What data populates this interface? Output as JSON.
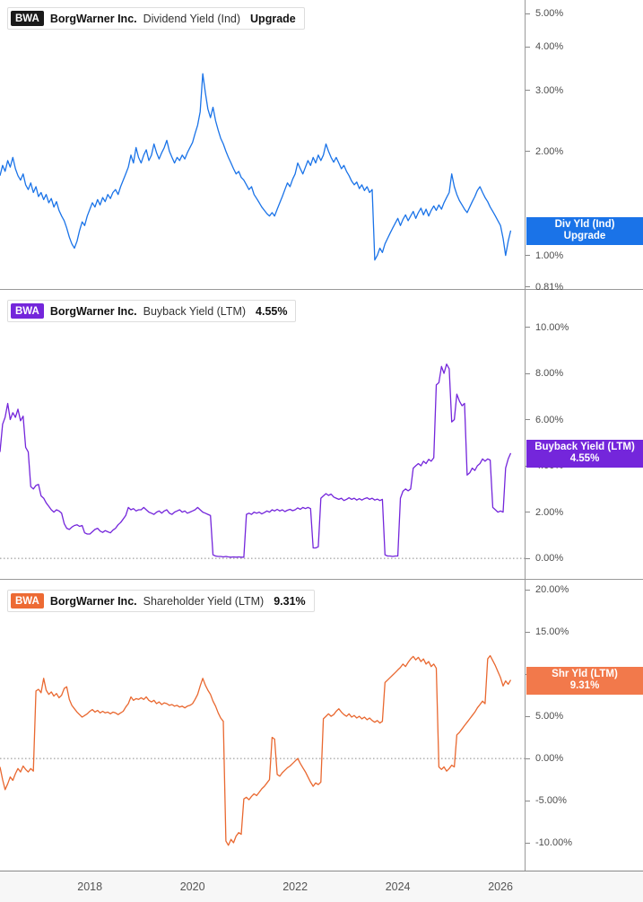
{
  "x_axis": {
    "domain": [
      2016.25,
      2026.47
    ],
    "values": [
      2018,
      2020,
      2022,
      2024,
      2026
    ],
    "labels": [
      "2018",
      "2020",
      "2022",
      "2024",
      "2026"
    ]
  },
  "chart_data": [
    {
      "type": "line",
      "ticker": "BWA",
      "company": "BorgWarner Inc.",
      "metric": "Dividend Yield (Ind)",
      "header_value": "Upgrade",
      "badge": {
        "line1": "Div Yld (Ind)",
        "line2": "Upgrade"
      },
      "color": "#1a73e8",
      "badge_color": "#1a73e8",
      "ticker_bg": "#1a1a1a",
      "y_scale": "log",
      "y_domain": [
        0.8,
        5.47
      ],
      "y_ticks": [
        5,
        4,
        3,
        2,
        1,
        0.81
      ],
      "y_tick_labels": [
        "5.00%",
        "4.00%",
        "3.00%",
        "2.00%",
        "1.00%",
        "0.81%"
      ],
      "zero_line": false,
      "x_start": 2016.25,
      "x_step": 0.05,
      "values": [
        1.7,
        1.82,
        1.75,
        1.88,
        1.8,
        1.92,
        1.78,
        1.7,
        1.65,
        1.72,
        1.6,
        1.55,
        1.62,
        1.52,
        1.58,
        1.48,
        1.52,
        1.45,
        1.5,
        1.42,
        1.46,
        1.38,
        1.43,
        1.35,
        1.3,
        1.26,
        1.2,
        1.13,
        1.08,
        1.05,
        1.1,
        1.18,
        1.25,
        1.22,
        1.3,
        1.36,
        1.42,
        1.38,
        1.45,
        1.4,
        1.47,
        1.43,
        1.5,
        1.46,
        1.52,
        1.55,
        1.5,
        1.58,
        1.65,
        1.72,
        1.8,
        1.95,
        1.85,
        2.05,
        1.92,
        1.85,
        1.95,
        2.02,
        1.88,
        1.95,
        2.1,
        1.98,
        1.9,
        1.98,
        2.05,
        2.15,
        2.0,
        1.92,
        1.85,
        1.92,
        1.88,
        1.95,
        1.9,
        1.98,
        2.05,
        2.12,
        2.25,
        2.38,
        2.6,
        3.35,
        2.95,
        2.65,
        2.5,
        2.68,
        2.45,
        2.3,
        2.18,
        2.1,
        2.0,
        1.92,
        1.85,
        1.78,
        1.72,
        1.75,
        1.68,
        1.65,
        1.6,
        1.55,
        1.58,
        1.5,
        1.46,
        1.42,
        1.38,
        1.35,
        1.32,
        1.3,
        1.33,
        1.3,
        1.36,
        1.42,
        1.48,
        1.55,
        1.62,
        1.58,
        1.66,
        1.72,
        1.85,
        1.78,
        1.72,
        1.8,
        1.88,
        1.82,
        1.92,
        1.85,
        1.95,
        1.88,
        1.95,
        2.1,
        2.0,
        1.92,
        1.86,
        1.92,
        1.85,
        1.78,
        1.82,
        1.75,
        1.7,
        1.64,
        1.6,
        1.63,
        1.56,
        1.6,
        1.54,
        1.58,
        1.52,
        1.55,
        0.97,
        1.0,
        1.05,
        1.02,
        1.08,
        1.12,
        1.16,
        1.2,
        1.24,
        1.28,
        1.22,
        1.27,
        1.31,
        1.26,
        1.3,
        1.34,
        1.28,
        1.33,
        1.37,
        1.31,
        1.36,
        1.3,
        1.35,
        1.39,
        1.35,
        1.4,
        1.36,
        1.42,
        1.47,
        1.52,
        1.72,
        1.58,
        1.5,
        1.44,
        1.4,
        1.36,
        1.33,
        1.38,
        1.43,
        1.48,
        1.54,
        1.58,
        1.52,
        1.47,
        1.43,
        1.38,
        1.34,
        1.3,
        1.26,
        1.22,
        1.12,
        1.0,
        1.1,
        1.18
      ]
    },
    {
      "type": "line",
      "ticker": "BWA",
      "company": "BorgWarner Inc.",
      "metric": "Buyback Yield (LTM)",
      "header_value": "4.55%",
      "badge": {
        "line1": "Buyback Yield (LTM)",
        "line2": "4.55%"
      },
      "color": "#7426db",
      "badge_color": "#7426db",
      "ticker_bg": "#7426db",
      "y_scale": "linear",
      "y_domain": [
        -0.89,
        11.65
      ],
      "y_ticks": [
        10,
        8,
        6,
        4,
        2,
        0
      ],
      "y_tick_labels": [
        "10.00%",
        "8.00%",
        "6.00%",
        "4.00%",
        "2.00%",
        "0.00%"
      ],
      "zero_line": true,
      "x_start": 2016.25,
      "x_step": 0.05,
      "values": [
        4.6,
        5.8,
        6.1,
        6.7,
        6.0,
        6.3,
        6.1,
        6.45,
        5.95,
        6.15,
        4.8,
        4.6,
        3.1,
        3.0,
        3.15,
        3.2,
        2.7,
        2.6,
        2.4,
        2.25,
        2.1,
        2.0,
        2.1,
        2.05,
        1.95,
        1.5,
        1.3,
        1.25,
        1.35,
        1.42,
        1.45,
        1.38,
        1.42,
        1.1,
        1.05,
        1.05,
        1.15,
        1.25,
        1.3,
        1.18,
        1.12,
        1.2,
        1.15,
        1.1,
        1.22,
        1.3,
        1.45,
        1.55,
        1.7,
        1.85,
        2.2,
        2.1,
        2.15,
        2.05,
        2.1,
        2.1,
        2.2,
        2.1,
        2.0,
        1.95,
        1.9,
        2.0,
        2.05,
        1.95,
        2.05,
        2.1,
        1.95,
        1.9,
        2.0,
        2.05,
        2.1,
        2.0,
        2.05,
        1.95,
        2.0,
        2.05,
        2.1,
        2.2,
        2.1,
        2.0,
        1.95,
        1.9,
        1.85,
        0.15,
        0.1,
        0.08,
        0.08,
        0.06,
        0.08,
        0.06,
        0.05,
        0.06,
        0.05,
        0.06,
        0.05,
        0.05,
        1.9,
        1.95,
        1.9,
        2.0,
        1.95,
        2.0,
        1.92,
        1.98,
        2.05,
        2.0,
        2.1,
        2.05,
        2.12,
        2.05,
        2.1,
        2.02,
        2.08,
        2.12,
        2.06,
        2.1,
        2.18,
        2.12,
        2.2,
        2.15,
        2.2,
        2.15,
        0.45,
        0.45,
        0.5,
        2.6,
        2.7,
        2.8,
        2.72,
        2.78,
        2.65,
        2.6,
        2.55,
        2.6,
        2.5,
        2.55,
        2.62,
        2.55,
        2.6,
        2.52,
        2.58,
        2.52,
        2.58,
        2.62,
        2.55,
        2.6,
        2.52,
        2.56,
        2.5,
        2.55,
        0.15,
        0.1,
        0.1,
        0.08,
        0.1,
        0.1,
        2.6,
        2.9,
        3.0,
        2.92,
        3.0,
        3.9,
        4.0,
        4.1,
        4.0,
        4.2,
        4.1,
        4.28,
        4.2,
        4.35,
        7.5,
        7.6,
        8.3,
        8.0,
        8.4,
        8.2,
        5.9,
        6.0,
        7.1,
        6.8,
        6.6,
        6.7,
        3.6,
        3.7,
        3.9,
        3.8,
        4.0,
        4.1,
        4.3,
        4.2,
        4.3,
        4.25,
        2.2,
        2.1,
        2.0,
        2.05,
        2.0,
        3.9,
        4.3,
        4.55
      ]
    },
    {
      "type": "line",
      "ticker": "BWA",
      "company": "BorgWarner Inc.",
      "metric": "Shareholder Yield (LTM)",
      "header_value": "9.31%",
      "badge": {
        "line1": "Shr Yld (LTM)",
        "line2": "9.31%"
      },
      "color": "#e96830",
      "badge_color": "#f2794b",
      "ticker_bg": "#ed6a33",
      "y_scale": "linear",
      "y_domain": [
        -13.3,
        21.3
      ],
      "y_ticks": [
        20,
        15,
        10,
        5,
        0,
        -5,
        -10
      ],
      "y_tick_labels": [
        "20.00%",
        "15.00%",
        "10.00%",
        "5.00%",
        "0.00%",
        "-5.00%",
        "-10.00%"
      ],
      "zero_line": true,
      "x_start": 2016.25,
      "x_step": 0.05,
      "values": [
        -1.0,
        -2.5,
        -3.7,
        -3.0,
        -2.2,
        -2.6,
        -1.8,
        -1.2,
        -1.6,
        -0.9,
        -1.3,
        -1.6,
        -1.2,
        -1.5,
        8.0,
        8.2,
        7.8,
        9.5,
        8.1,
        7.6,
        7.9,
        7.4,
        7.7,
        7.2,
        7.5,
        8.3,
        8.5,
        7.0,
        6.3,
        5.9,
        5.5,
        5.2,
        4.9,
        5.1,
        5.3,
        5.6,
        5.8,
        5.5,
        5.7,
        5.4,
        5.6,
        5.4,
        5.5,
        5.3,
        5.5,
        5.4,
        5.2,
        5.4,
        5.6,
        6.1,
        6.5,
        7.3,
        6.9,
        7.1,
        7.0,
        7.2,
        7.0,
        7.3,
        6.9,
        6.7,
        6.9,
        6.5,
        6.7,
        6.4,
        6.6,
        6.5,
        6.3,
        6.4,
        6.2,
        6.3,
        6.1,
        6.2,
        6.0,
        6.2,
        6.3,
        6.5,
        7.0,
        7.6,
        8.6,
        9.5,
        8.7,
        8.1,
        7.6,
        6.8,
        6.2,
        5.4,
        4.8,
        4.4,
        -9.8,
        -10.3,
        -9.6,
        -10.0,
        -9.2,
        -8.8,
        -9.0,
        -4.8,
        -4.6,
        -4.9,
        -4.5,
        -4.2,
        -4.4,
        -4.0,
        -3.6,
        -3.3,
        -2.9,
        -2.5,
        2.5,
        2.3,
        -1.9,
        -2.1,
        -1.7,
        -1.4,
        -1.1,
        -0.9,
        -0.6,
        -0.3,
        0.0,
        -0.6,
        -1.1,
        -1.6,
        -2.2,
        -2.8,
        -3.3,
        -2.9,
        -3.1,
        -2.8,
        4.7,
        5.0,
        5.3,
        5.0,
        5.2,
        5.6,
        5.9,
        5.5,
        5.2,
        5.0,
        5.3,
        4.9,
        5.1,
        4.8,
        5.0,
        4.7,
        4.9,
        4.6,
        4.8,
        4.5,
        4.3,
        4.5,
        4.2,
        4.4,
        9.0,
        9.3,
        9.6,
        9.9,
        10.2,
        10.5,
        10.8,
        11.2,
        10.9,
        11.4,
        11.8,
        12.1,
        11.7,
        12.0,
        11.5,
        11.8,
        11.2,
        11.5,
        10.9,
        11.2,
        10.7,
        -1.0,
        -1.3,
        -1.0,
        -1.5,
        -1.2,
        -0.8,
        -1.0,
        2.8,
        3.1,
        3.5,
        3.9,
        4.3,
        4.7,
        5.1,
        5.5,
        6.0,
        6.4,
        6.8,
        6.5,
        11.8,
        12.2,
        11.6,
        11.0,
        10.3,
        9.6,
        8.6,
        9.2,
        8.8,
        9.31
      ]
    }
  ]
}
